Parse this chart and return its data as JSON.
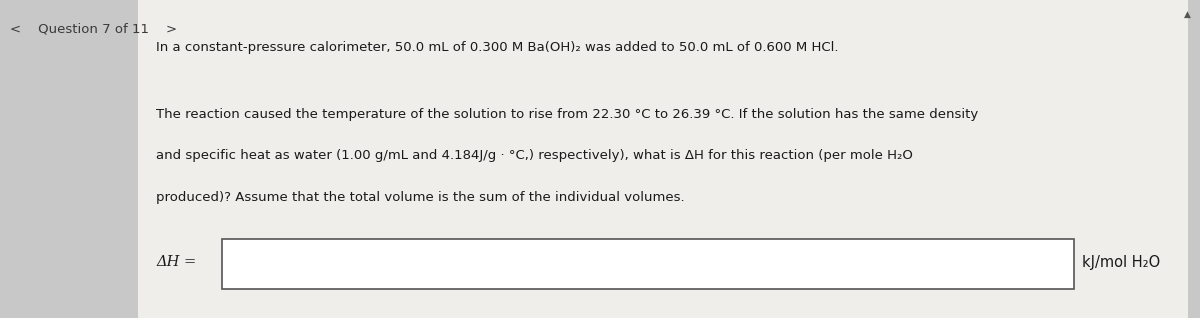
{
  "bg_color": "#c8c8c8",
  "card_color": "#f0eeeb",
  "header_text": "<    Question 7 of 11    >",
  "line1": "In a constant-pressure calorimeter, 50.0 mL of 0.300 M Ba(OH)₂ was added to 50.0 mL of 0.600 M HCl.",
  "line2": "The reaction caused the temperature of the solution to rise from 22.30 °C to 26.39 °C. If the solution has the same density",
  "line3": "and specific heat as water (1.00 g/mL and 4.184J/g · °C,) respectively), what is ΔH for this reaction (per mole H₂O",
  "line4": "produced)? Assume that the total volume is the sum of the individual volumes.",
  "input_label": "ΔH =",
  "input_units": "kJ/mol H₂O",
  "text_color": "#1a1a1a",
  "header_color": "#3a3a3a",
  "input_box_color": "#ffffff",
  "input_box_border": "#555555",
  "font_size_header": 9.5,
  "font_size_body": 9.5,
  "font_size_input": 10.5,
  "triangle_color": "#555555"
}
